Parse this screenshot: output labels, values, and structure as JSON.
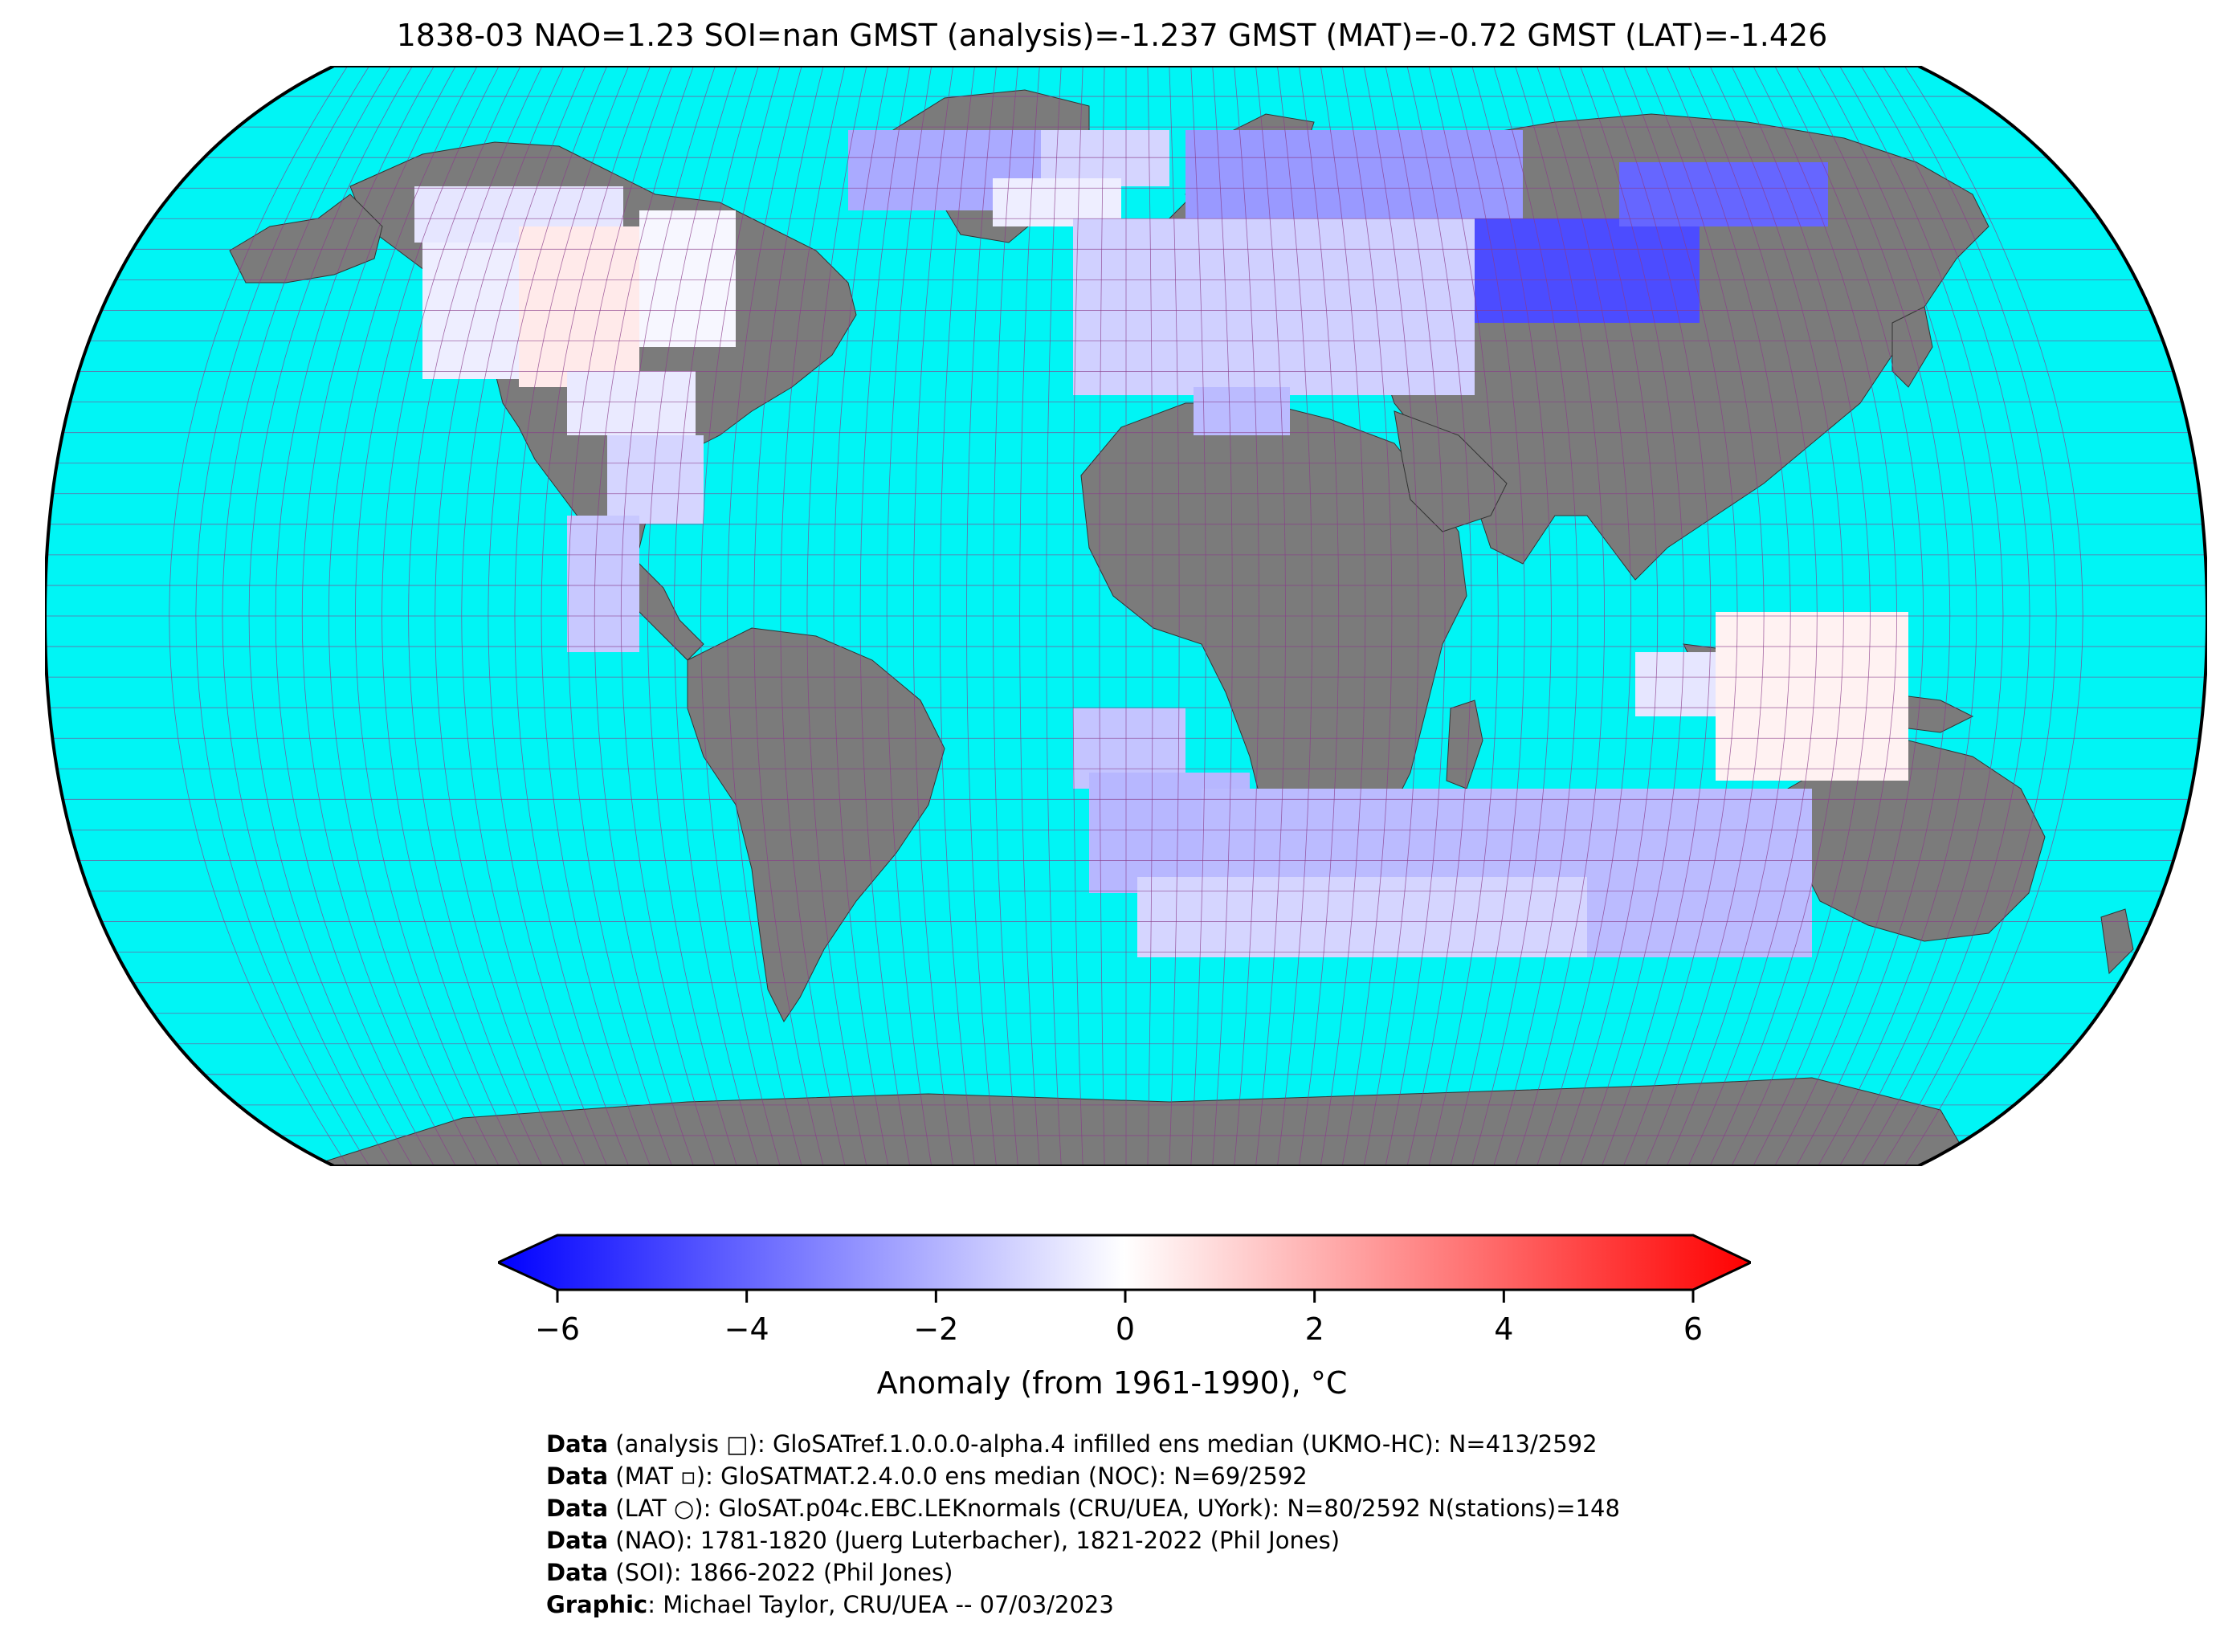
{
  "title": "1838-03 NAO=1.23 SOI=nan GMST (analysis)=-1.237 GMST (MAT)=-0.72 GMST (LAT)=-1.426",
  "colors": {
    "ocean": "#00f5f5",
    "land": "#7b7b7b",
    "grid": "#8a3b8a",
    "border": "#000000"
  },
  "colorbar": {
    "ticks": [
      "−6",
      "−4",
      "−2",
      "0",
      "2",
      "4",
      "6"
    ],
    "min": -6,
    "max": 6,
    "label": "Anomaly (from 1961-1990), °C",
    "stops": [
      "#0000ff",
      "#ffffff",
      "#ff0000"
    ]
  },
  "credits": [
    {
      "key": "Data",
      "text": " (analysis □): GloSATref.1.0.0.0-alpha.4 infilled ens median (UKMO-HC): N=413/2592"
    },
    {
      "key": "Data",
      "text": " (MAT ▫): GloSATMAT.2.4.0.0 ens median (NOC): N=69/2592"
    },
    {
      "key": "Data",
      "text": " (LAT ○): GloSAT.p04c.EBC.LEKnormals (CRU/UEA, UYork): N=80/2592 N(stations)=148"
    },
    {
      "key": "Data",
      "text": " (NAO): 1781-1820 (Juerg Luterbacher), 1821-2022 (Phil Jones)"
    },
    {
      "key": "Data",
      "text": " (SOI): 1866-2022 (Phil Jones)"
    },
    {
      "key": "Graphic",
      "text": ": Michael Taylor, CRU/UEA -- 07/03/2023"
    }
  ]
}
